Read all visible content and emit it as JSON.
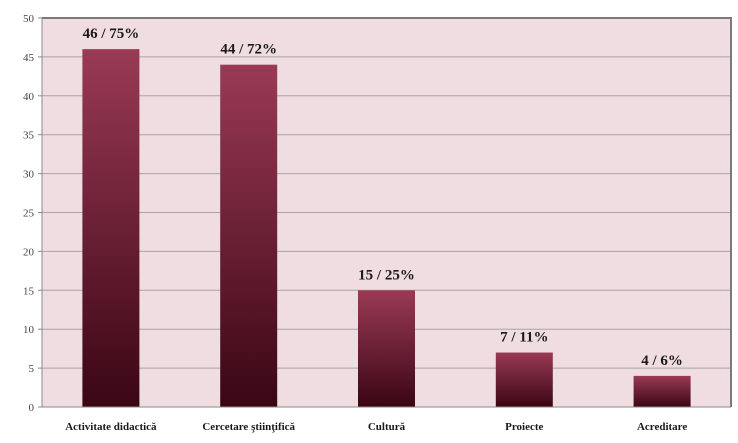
{
  "chart_data": {
    "type": "bar",
    "title": "",
    "xlabel": "",
    "ylabel": "",
    "categories": [
      "Activitate didactică",
      "Cercetare ştiinţifică",
      "Cultură",
      "Proiecte",
      "Acreditare"
    ],
    "values": [
      46,
      44,
      15,
      7,
      4
    ],
    "data_labels": [
      "46 / 75%",
      "44 / 72%",
      "15 / 25%",
      "7 / 11%",
      "4 / 6%"
    ],
    "ylim": [
      0,
      50
    ],
    "yticks": [
      0,
      5,
      10,
      15,
      20,
      25,
      30,
      35,
      40,
      45,
      50
    ],
    "grid": true,
    "legend": "none",
    "colors": {
      "plot_background": "#efdde2",
      "bar_top": "#9a3a55",
      "bar_bottom": "#3a0614",
      "gridline": "#a8a4a6",
      "frame": "#7a7a7a"
    }
  }
}
